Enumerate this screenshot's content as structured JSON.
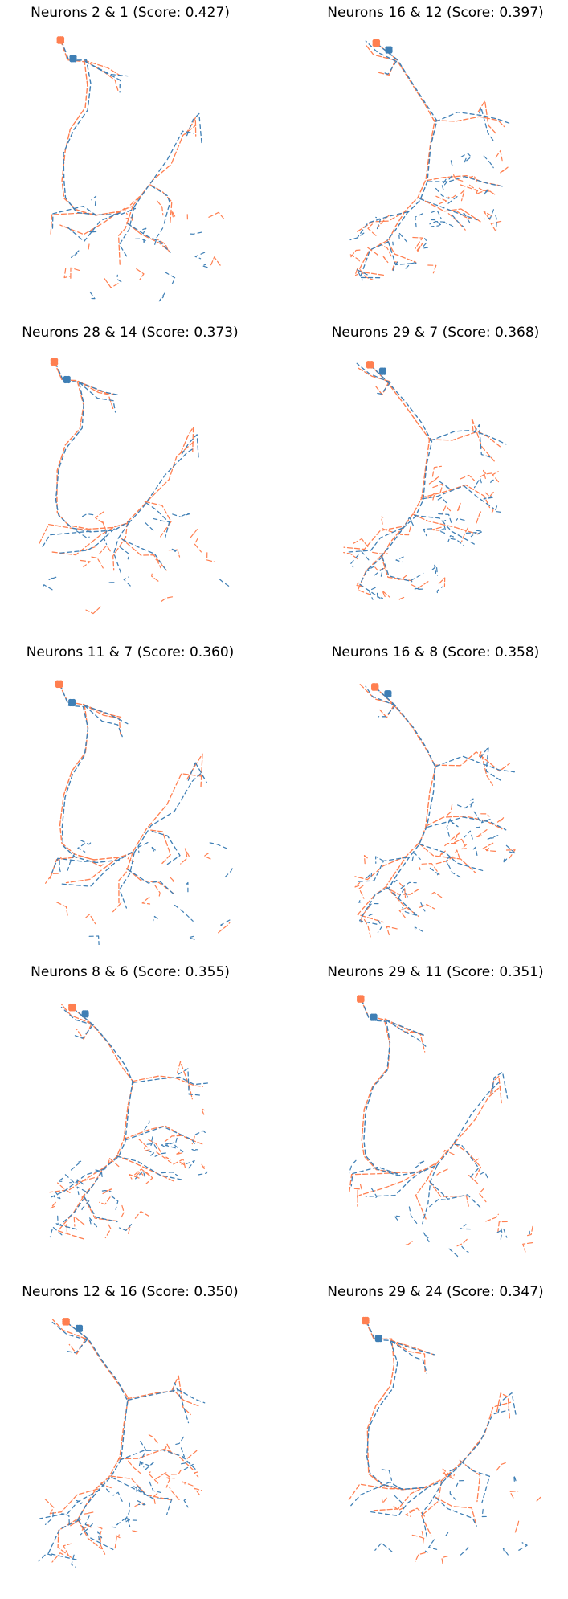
{
  "figure": {
    "colors": {
      "neuron_a": "#3f7fb5",
      "neuron_b": "#ff7f50"
    },
    "axes": "off",
    "panels": [
      {
        "title": "Neurons 2 & 1 (Score: 0.427)",
        "pair": [
          2,
          1
        ],
        "score": 0.427
      },
      {
        "title": "Neurons 16 & 12 (Score: 0.397)",
        "pair": [
          16,
          12
        ],
        "score": 0.397
      },
      {
        "title": "Neurons 28 & 14 (Score: 0.373)",
        "pair": [
          28,
          14
        ],
        "score": 0.373
      },
      {
        "title": "Neurons 29 & 7 (Score: 0.368)",
        "pair": [
          29,
          7
        ],
        "score": 0.368
      },
      {
        "title": "Neurons 11 & 7 (Score: 0.360)",
        "pair": [
          11,
          7
        ],
        "score": 0.36
      },
      {
        "title": "Neurons 16 & 8 (Score: 0.358)",
        "pair": [
          16,
          8
        ],
        "score": 0.358
      },
      {
        "title": "Neurons 8 & 6 (Score: 0.355)",
        "pair": [
          8,
          6
        ],
        "score": 0.355
      },
      {
        "title": "Neurons 29 & 11 (Score: 0.351)",
        "pair": [
          29,
          11
        ],
        "score": 0.351
      },
      {
        "title": "Neurons 12 & 16 (Score: 0.350)",
        "pair": [
          12,
          16
        ],
        "score": 0.35
      },
      {
        "title": "Neurons 29 & 24 (Score: 0.347)",
        "pair": [
          29,
          24
        ],
        "score": 0.347
      }
    ]
  }
}
